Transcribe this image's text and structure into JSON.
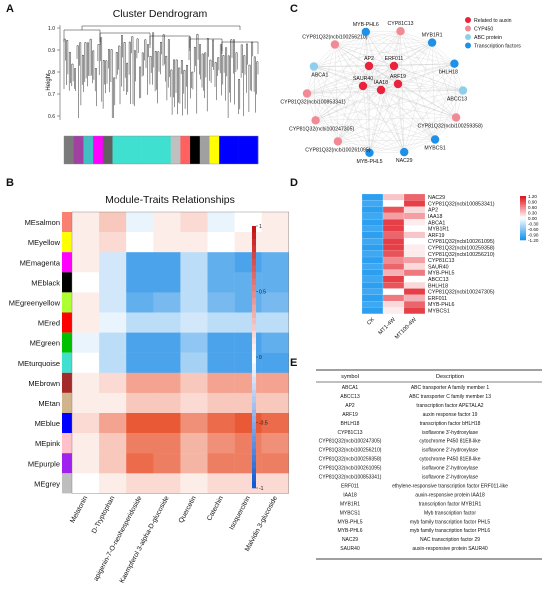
{
  "panels": {
    "A": {
      "letter": "A",
      "title": "Cluster Dendrogram",
      "ylabel": "Height",
      "yticks": [
        "1.0",
        "0.9",
        "0.8",
        "0.7",
        "0.6"
      ],
      "colorbar": [
        "#7a7a7a",
        "#a040a0",
        "#40c0c0",
        "#ff00ff",
        "#606060",
        "#40e0d0",
        "#40e0d0",
        "#40e0d0",
        "#40e0d0",
        "#40e0d0",
        "#40e0d0",
        "#c0c0c0",
        "#ff6060",
        "#000000",
        "#a0a0a0",
        "#ffff00",
        "#0000ff",
        "#0000ff",
        "#0000ff",
        "#0000ff"
      ]
    },
    "B": {
      "letter": "B",
      "title": "Module-Traits Relationships",
      "rows": [
        {
          "label": "MEsalmon",
          "color": "#fa8072"
        },
        {
          "label": "MEyellow",
          "color": "#ffff00"
        },
        {
          "label": "MEmagenta",
          "color": "#ff00ff"
        },
        {
          "label": "MEblack",
          "color": "#000000"
        },
        {
          "label": "MEgreenyellow",
          "color": "#adff2f"
        },
        {
          "label": "MEred",
          "color": "#ff0000"
        },
        {
          "label": "MEgreen",
          "color": "#00c000"
        },
        {
          "label": "MEturquoise",
          "color": "#40e0d0"
        },
        {
          "label": "MEbrown",
          "color": "#a52a2a"
        },
        {
          "label": "MEtan",
          "color": "#d2b48c"
        },
        {
          "label": "MEblue",
          "color": "#0000ff"
        },
        {
          "label": "MEpink",
          "color": "#ffc0cb"
        },
        {
          "label": "MEpurple",
          "color": "#a020f0"
        },
        {
          "label": "MEgrey",
          "color": "#bebebe"
        }
      ],
      "columns": [
        "Melatonin",
        "D-Tryptophan",
        "apigenin-7-O-neohesperidoside",
        "Kaempferol 3-alpha-D-glucoside",
        "Quercetin",
        "Catechin",
        "Isoquercitrin",
        "Malvidin 3-glucoside"
      ],
      "legend_ticks": [
        "1",
        "0.5",
        "0",
        "-0.5",
        "-1"
      ],
      "cells": [
        [
          0.1,
          0.3,
          -0.1,
          0.1,
          0.2,
          -0.1,
          0.0,
          0.1
        ],
        [
          0.1,
          0.2,
          0.0,
          0.1,
          0.1,
          0.0,
          0.1,
          0.1
        ],
        [
          0.1,
          -0.2,
          -0.8,
          -0.8,
          -0.3,
          -0.7,
          -0.8,
          -0.7
        ],
        [
          0.0,
          -0.2,
          -0.8,
          -0.8,
          -0.3,
          -0.7,
          -0.7,
          -0.7
        ],
        [
          0.1,
          -0.2,
          -0.7,
          -0.6,
          -0.3,
          -0.6,
          -0.7,
          -0.6
        ],
        [
          0.1,
          -0.1,
          -0.3,
          -0.3,
          -0.2,
          -0.3,
          -0.3,
          -0.3
        ],
        [
          -0.1,
          -0.3,
          -0.8,
          -0.8,
          -0.5,
          -0.8,
          -0.8,
          -0.7
        ],
        [
          0.0,
          -0.3,
          -0.8,
          -0.8,
          -0.4,
          -0.8,
          -0.8,
          -0.8
        ],
        [
          0.1,
          0.2,
          0.5,
          0.5,
          0.3,
          0.5,
          0.5,
          0.5
        ],
        [
          0.1,
          0.1,
          0.3,
          0.3,
          0.2,
          0.3,
          0.3,
          0.3
        ],
        [
          0.2,
          0.5,
          0.9,
          0.9,
          0.6,
          0.8,
          0.9,
          0.8
        ],
        [
          0.1,
          0.3,
          0.7,
          0.7,
          0.4,
          0.6,
          0.7,
          0.6
        ],
        [
          0.1,
          0.3,
          0.8,
          0.7,
          0.4,
          0.7,
          0.7,
          0.7
        ],
        [
          0.0,
          0.1,
          0.2,
          0.2,
          0.1,
          0.2,
          0.2,
          0.2
        ]
      ]
    },
    "C": {
      "letter": "C",
      "nodes": [
        {
          "label": "CYP81C13",
          "type": "cyp450"
        },
        {
          "label": "MYB1R1",
          "type": "tf"
        },
        {
          "label": "bHLH18",
          "type": "tf"
        },
        {
          "label": "ABCC13",
          "type": "abc"
        },
        {
          "label": "CYP81Q32(ncbi100259358)",
          "type": "cyp450"
        },
        {
          "label": "MYBCS1",
          "type": "tf"
        },
        {
          "label": "NAC29",
          "type": "tf"
        },
        {
          "label": "MYB-PHL5",
          "type": "tf"
        },
        {
          "label": "CYP81Q32(ncbi100261095)",
          "type": "cyp450"
        },
        {
          "label": "CYP81Q32(ncbi100247305)",
          "type": "cyp450"
        },
        {
          "label": "CYP81Q32(ncbi100853341)",
          "type": "cyp450"
        },
        {
          "label": "ABCA1",
          "type": "abc"
        },
        {
          "label": "CYP81Q32(ncbi100256210)",
          "type": "cyp450"
        },
        {
          "label": "MYB-PHL6",
          "type": "tf"
        },
        {
          "label": "AP2",
          "type": "auxin"
        },
        {
          "label": "ERF011",
          "type": "auxin"
        },
        {
          "label": "SAUR40",
          "type": "auxin"
        },
        {
          "label": "ARF19",
          "type": "auxin"
        },
        {
          "label": "IAA18",
          "type": "auxin"
        }
      ],
      "legend": [
        {
          "label": "Related to auxin",
          "color": "#e8233b"
        },
        {
          "label": "CYP450",
          "color": "#f28a96"
        },
        {
          "label": "ABC protein",
          "color": "#8ecfee"
        },
        {
          "label": "Transcription factors",
          "color": "#1e90e8"
        }
      ]
    },
    "D": {
      "letter": "D",
      "genes": [
        "NAC29",
        "CYP81Q32(ncbi100853341)",
        "AP2",
        "IAA18",
        "ABCA1",
        "MYB1R1",
        "ARF19",
        "CYP81Q32(ncbi100261095)",
        "CYP81Q32(ncbi100259358)",
        "CYP81Q32(ncbi100256210)",
        "CYP81C13",
        "SAUR40",
        "MYB-PHL5",
        "ABCC13",
        "BHLH18",
        "CYP81Q32(ncbi100247305)",
        "ERF011",
        "MYB-PHL6",
        "MYBCS1"
      ],
      "columns": [
        "CK",
        "MT1-4W",
        "MT100-4W"
      ],
      "values": [
        [
          -1.1,
          0.3,
          0.8
        ],
        [
          -1.0,
          0.0,
          1.0
        ],
        [
          -1.1,
          0.9,
          0.2
        ],
        [
          -1.0,
          0.5,
          0.5
        ],
        [
          -1.1,
          1.0,
          0.1
        ],
        [
          -1.0,
          1.0,
          0.0
        ],
        [
          -1.1,
          0.8,
          0.3
        ],
        [
          -1.0,
          1.0,
          0.0
        ],
        [
          -1.1,
          1.0,
          0.1
        ],
        [
          -1.0,
          0.9,
          0.1
        ],
        [
          -1.1,
          0.6,
          0.5
        ],
        [
          -1.0,
          0.8,
          0.2
        ],
        [
          -1.1,
          0.4,
          0.7
        ],
        [
          -1.0,
          1.0,
          0.0
        ],
        [
          -1.1,
          0.9,
          0.2
        ],
        [
          -1.0,
          0.0,
          1.0
        ],
        [
          -1.1,
          0.7,
          0.4
        ],
        [
          -1.0,
          0.2,
          0.8
        ],
        [
          -1.1,
          0.1,
          1.0
        ]
      ],
      "legend_ticks": [
        "1.20",
        "0.90",
        "0.60",
        "0.30",
        "0.00",
        "-0.30",
        "-0.60",
        "-0.90",
        "-1.20"
      ]
    },
    "E": {
      "letter": "E",
      "headers": [
        "symbol",
        "Description"
      ],
      "rows": [
        [
          "ABCA1",
          "ABC transporter A family member 1"
        ],
        [
          "ABCC13",
          "ABC transporter C family member 13"
        ],
        [
          "AP2",
          "transcription factor APETALA2"
        ],
        [
          "ARF19",
          "auxin response factor 19"
        ],
        [
          "BHLH18",
          "transcription factor bHLH18"
        ],
        [
          "CYP81C13",
          "isoflavone 3'-hydroxylase"
        ],
        [
          "CYP81Q32(ncbi100247305)",
          "cytochrome P450 81E8-like"
        ],
        [
          "CYP81Q32(ncbi100256210)",
          "isoflavone 2'-hydroxylase"
        ],
        [
          "CYP81Q32(ncbi100259358)",
          "cytochrome P450 81E8-like"
        ],
        [
          "CYP81Q32(ncbi100261095)",
          "isoflavone 2'-hydroxylase"
        ],
        [
          "CYP81Q32(ncbi100853341)",
          "isoflavone 2'-hydroxylase"
        ],
        [
          "ERF011",
          "ethylene-responsive transcription factor ERF011-like"
        ],
        [
          "IAA18",
          "auxin-responsive protein IAA18"
        ],
        [
          "MYB1R1",
          "transcription factor MYB1R1"
        ],
        [
          "MYBCS1",
          "Myb transcription factor"
        ],
        [
          "MYB-PHL5",
          "myb family transcription factor PHL5"
        ],
        [
          "MYB-PHL6",
          "myb family transcription factor PHL6"
        ],
        [
          "NAC29",
          "NAC transcription factor 29"
        ],
        [
          "SAUR40",
          "auxin-responsive protein SAUR40"
        ]
      ]
    }
  }
}
